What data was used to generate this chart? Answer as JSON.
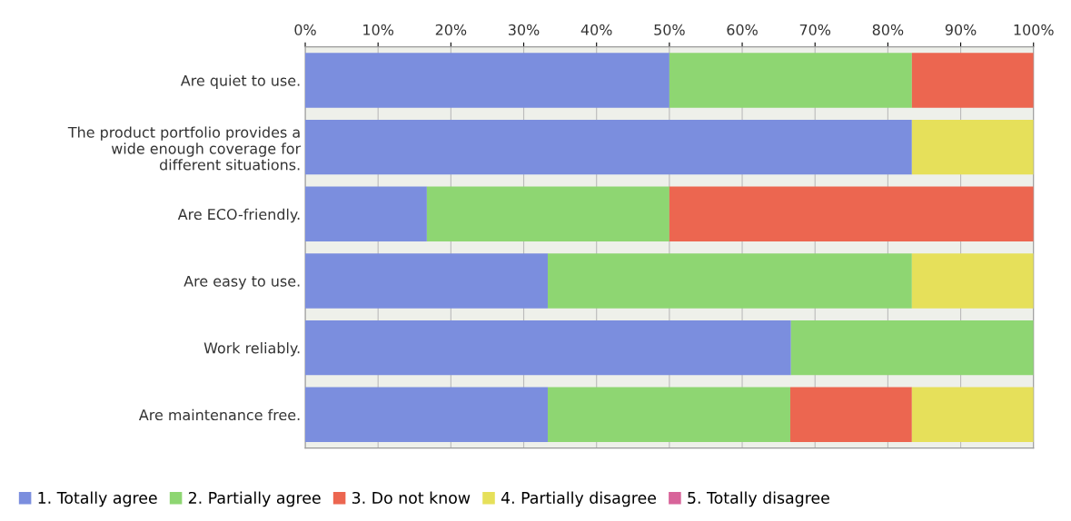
{
  "chart_data": {
    "type": "bar",
    "orientation": "horizontal",
    "stacked": true,
    "categories": [
      "Are quiet to use.",
      "The product portfolio provides a\nwide enough coverage for\ndifferent situations.",
      "Are ECO-friendly.",
      "Are easy to use.",
      "Work reliably.",
      "Are maintenance free."
    ],
    "series": [
      {
        "name": "1. Totally agree",
        "color": "#7b8ede",
        "values": [
          50,
          83.3,
          16.7,
          33.3,
          66.7,
          33.3
        ]
      },
      {
        "name": "2. Partially agree",
        "color": "#8ed672",
        "values": [
          33.3,
          0,
          33.3,
          50,
          33.3,
          33.3
        ]
      },
      {
        "name": "3. Do not know",
        "color": "#ec6650",
        "values": [
          16.7,
          0,
          50,
          0,
          0,
          16.7
        ]
      },
      {
        "name": "4. Partially disagree",
        "color": "#e6e05a",
        "values": [
          0,
          16.7,
          0,
          16.7,
          0,
          16.7
        ]
      },
      {
        "name": "5. Totally disagree",
        "color": "#d8649a",
        "values": [
          0,
          0,
          0,
          0,
          0,
          0
        ]
      }
    ],
    "xlim": [
      0,
      100
    ],
    "xticks": [
      {
        "value": 0,
        "label": "0%"
      },
      {
        "value": 10,
        "label": "10%"
      },
      {
        "value": 20,
        "label": "20%"
      },
      {
        "value": 30,
        "label": "30%"
      },
      {
        "value": 40,
        "label": "40%"
      },
      {
        "value": 50,
        "label": "50%"
      },
      {
        "value": 60,
        "label": "60%"
      },
      {
        "value": 70,
        "label": "70%"
      },
      {
        "value": 80,
        "label": "80%"
      },
      {
        "value": 90,
        "label": "90%"
      },
      {
        "value": 100,
        "label": "100%"
      }
    ],
    "grid": "x",
    "legend": "bottom left"
  }
}
